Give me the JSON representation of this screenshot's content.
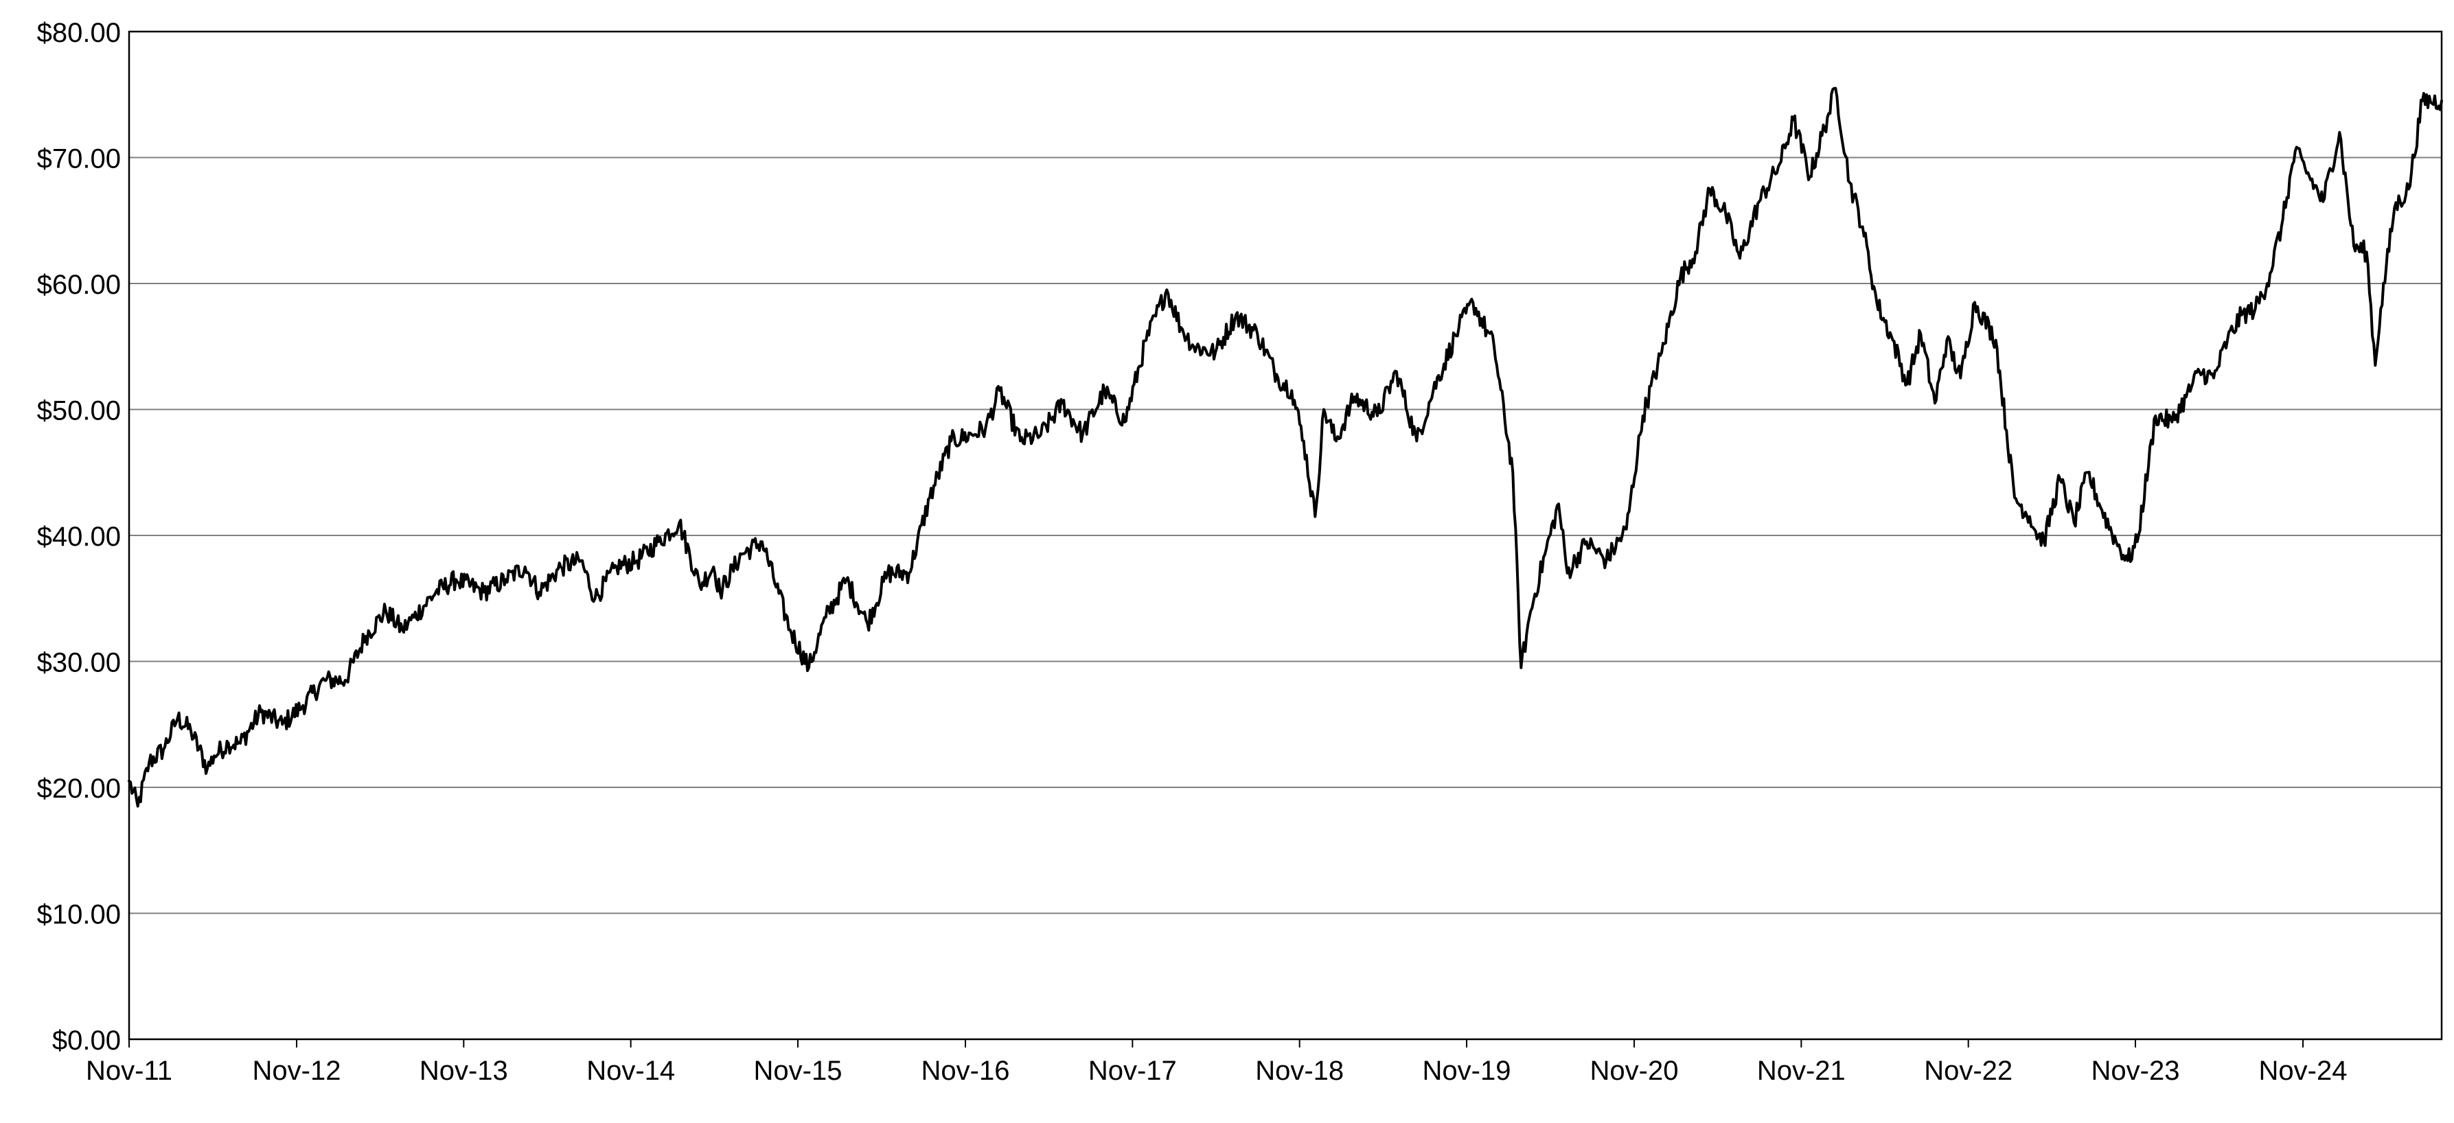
{
  "chart_data": {
    "type": "line",
    "title": "",
    "xlabel": "",
    "ylabel": "",
    "x_range": [
      "2011-11-01",
      "2025-08-31"
    ],
    "ylim": [
      0,
      80
    ],
    "grid": "horizontal",
    "legend": "none",
    "colors": {
      "line": "#000000",
      "grid": "#808080",
      "frame": "#000000"
    },
    "y_ticks": [
      0,
      10,
      20,
      30,
      40,
      50,
      60,
      70,
      80
    ],
    "y_tick_labels": [
      "$0.00",
      "$10.00",
      "$20.00",
      "$30.00",
      "$40.00",
      "$50.00",
      "$60.00",
      "$70.00",
      "$80.00"
    ],
    "x_ticks": [
      "2011-11-01",
      "2012-11-01",
      "2013-11-01",
      "2014-11-01",
      "2015-11-01",
      "2016-11-01",
      "2017-11-01",
      "2018-11-01",
      "2019-11-01",
      "2020-11-01",
      "2021-11-01",
      "2022-11-01",
      "2023-11-01",
      "2024-11-01"
    ],
    "x_tick_labels": [
      "Nov-11",
      "Nov-12",
      "Nov-13",
      "Nov-14",
      "Nov-15",
      "Nov-16",
      "Nov-17",
      "Nov-18",
      "Nov-19",
      "Nov-20",
      "Nov-21",
      "Nov-22",
      "Nov-23",
      "Nov-24"
    ],
    "series": [
      {
        "x": [
          "2011-11-01",
          "2011-11-20",
          "2011-12-15",
          "2012-01-15",
          "2012-02-15",
          "2012-03-15",
          "2012-04-20",
          "2012-05-05",
          "2012-06-05",
          "2012-07-01",
          "2012-08-15",
          "2012-10-01",
          "2012-11-15",
          "2013-01-01",
          "2013-02-15",
          "2013-04-01",
          "2013-05-15",
          "2013-06-20",
          "2013-07-15",
          "2013-09-01",
          "2013-10-15",
          "2013-12-15",
          "2014-02-01",
          "2014-03-15",
          "2014-04-15",
          "2014-06-01",
          "2014-07-15",
          "2014-08-15",
          "2014-10-01",
          "2014-11-15",
          "2015-01-01",
          "2015-02-15",
          "2015-04-01",
          "2015-05-01",
          "2015-05-15",
          "2015-07-01",
          "2015-08-15",
          "2015-10-15",
          "2015-11-25",
          "2016-01-01",
          "2016-02-15",
          "2016-04-01",
          "2016-05-15",
          "2016-07-01",
          "2016-08-15",
          "2016-10-01",
          "2016-11-15",
          "2016-12-15",
          "2017-01-15",
          "2017-03-01",
          "2017-04-15",
          "2017-06-01",
          "2017-07-15",
          "2017-09-01",
          "2017-10-15",
          "2017-12-01",
          "2018-01-15",
          "2018-02-15",
          "2018-03-15",
          "2018-05-01",
          "2018-06-15",
          "2018-08-01",
          "2018-09-15",
          "2018-10-15",
          "2018-11-10",
          "2018-12-05",
          "2018-12-24",
          "2019-01-20",
          "2019-03-01",
          "2019-04-20",
          "2019-06-01",
          "2019-07-15",
          "2019-08-20",
          "2019-10-15",
          "2019-11-15",
          "2019-12-31",
          "2020-02-10",
          "2020-02-28",
          "2020-03-20",
          "2020-04-20",
          "2020-05-20",
          "2020-06-08",
          "2020-07-20",
          "2020-09-01",
          "2020-10-15",
          "2020-11-20",
          "2020-12-31",
          "2021-02-10",
          "2021-03-15",
          "2021-04-15",
          "2021-05-20",
          "2021-06-20",
          "2021-08-01",
          "2021-09-15",
          "2021-10-15",
          "2021-11-20",
          "2021-12-31",
          "2022-01-15",
          "2022-02-15",
          "2022-03-15",
          "2022-04-15",
          "2022-05-20",
          "2022-06-20",
          "2022-07-20",
          "2022-08-20",
          "2022-09-15",
          "2022-10-15",
          "2022-11-15",
          "2022-12-31",
          "2023-02-10",
          "2023-03-15",
          "2023-03-25",
          "2023-04-15",
          "2023-05-20",
          "2023-06-20",
          "2023-07-20",
          "2023-08-20",
          "2023-09-20",
          "2023-10-15",
          "2023-11-05",
          "2023-12-15",
          "2024-01-20",
          "2024-02-20",
          "2024-03-20",
          "2024-04-20",
          "2024-05-20",
          "2024-06-20",
          "2024-07-20",
          "2024-08-15",
          "2024-09-15",
          "2024-10-15",
          "2024-11-15",
          "2024-12-15",
          "2025-01-20",
          "2025-02-20",
          "2025-03-20",
          "2025-04-08",
          "2025-04-20",
          "2025-05-20",
          "2025-06-20",
          "2025-07-20",
          "2025-08-31"
        ],
        "values": [
          20.5,
          18.5,
          22.0,
          23.0,
          25.5,
          24.5,
          21.5,
          22.5,
          23.5,
          23.5,
          26.0,
          25.0,
          26.5,
          28.5,
          28.5,
          32.0,
          34.0,
          32.5,
          33.5,
          35.5,
          36.5,
          35.5,
          36.5,
          37.5,
          35.5,
          37.5,
          38.0,
          35.0,
          37.5,
          38.0,
          39.5,
          41.0,
          36.0,
          37.5,
          35.5,
          38.5,
          39.5,
          32.5,
          29.5,
          33.5,
          36.5,
          33.0,
          37.0,
          37.0,
          43.0,
          47.5,
          48.0,
          48.5,
          51.5,
          47.5,
          48.0,
          50.5,
          48.0,
          51.5,
          49.0,
          55.5,
          59.5,
          56.5,
          55.0,
          54.5,
          57.5,
          56.0,
          52.5,
          51.5,
          47.5,
          41.5,
          50.0,
          47.5,
          51.0,
          49.5,
          53.0,
          47.5,
          51.5,
          56.5,
          58.5,
          55.0,
          45.0,
          29.5,
          34.0,
          38.5,
          42.5,
          37.0,
          39.5,
          38.0,
          40.5,
          49.5,
          54.5,
          60.5,
          62.5,
          67.5,
          65.5,
          62.0,
          66.5,
          69.5,
          73.0,
          68.5,
          73.5,
          75.5,
          68.0,
          64.5,
          58.5,
          55.5,
          52.0,
          56.0,
          50.5,
          55.5,
          52.5,
          58.5,
          55.5,
          43.0,
          41.5,
          40.5,
          39.5,
          44.5,
          41.0,
          45.0,
          42.0,
          39.5,
          38.0,
          39.5,
          49.5,
          49.0,
          51.0,
          53.0,
          52.5,
          55.5,
          57.5,
          58.0,
          60.0,
          64.5,
          70.5,
          68.5,
          66.5,
          72.0,
          63.0,
          62.5,
          53.5,
          58.0,
          66.0,
          67.5,
          74.5,
          74.5
        ]
      }
    ]
  }
}
